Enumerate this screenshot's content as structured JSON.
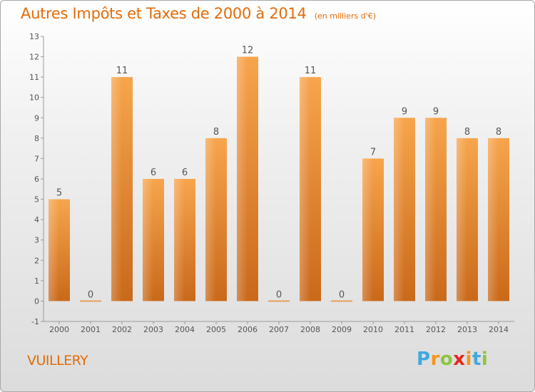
{
  "chart_data": {
    "type": "bar",
    "title": "Autres Impôts et Taxes de 2000 à 2014",
    "subtitle": "(en milliers d'€)",
    "categories": [
      "2000",
      "2001",
      "2002",
      "2003",
      "2004",
      "2005",
      "2006",
      "2007",
      "2008",
      "2009",
      "2010",
      "2011",
      "2012",
      "2013",
      "2014"
    ],
    "values": [
      5,
      0,
      11,
      6,
      6,
      8,
      12,
      0,
      11,
      0,
      7,
      9,
      9,
      8,
      8
    ],
    "ylim": [
      -1,
      13
    ],
    "yticks": [
      -1,
      0,
      1,
      2,
      3,
      4,
      5,
      6,
      7,
      8,
      9,
      10,
      11,
      12,
      13
    ],
    "grid": false,
    "bar_color": "#f59a3c",
    "bar_color_dark": "#cf6f17"
  },
  "place": "VUILLERY",
  "logo": {
    "letters": [
      "P",
      "r",
      "o",
      "x",
      "i",
      "t",
      "i"
    ],
    "colors": [
      "#3fa9e0",
      "#f7941d",
      "#8dc63f",
      "#e5251b",
      "#f7941d",
      "#3fa9e0",
      "#8dc63f"
    ]
  }
}
